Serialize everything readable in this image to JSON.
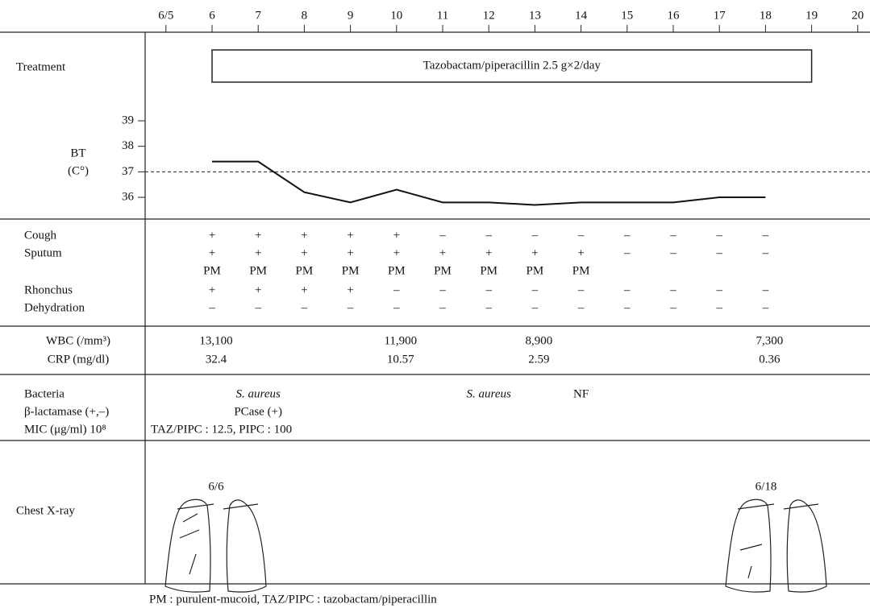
{
  "axis": {
    "days": [
      {
        "value": 5,
        "label": "6/5"
      },
      6,
      7,
      8,
      9,
      10,
      11,
      12,
      13,
      14,
      15,
      16,
      17,
      18,
      19,
      20
    ]
  },
  "treatment": {
    "label": "Treatment",
    "text": "Tazobactam/piperacillin  2.5 g×2/day",
    "start": 6,
    "end": 19
  },
  "bt": {
    "label": "BT",
    "unit": "(C°)",
    "yticks": [
      36,
      37,
      38,
      39
    ],
    "reference": 37,
    "days": [
      6,
      7,
      8,
      9,
      10,
      11,
      12,
      13,
      14,
      15,
      16,
      17,
      18
    ],
    "values": [
      37.4,
      37.4,
      36.2,
      35.8,
      36.3,
      35.8,
      35.8,
      35.7,
      35.8,
      35.8,
      35.8,
      36.0,
      36.0
    ]
  },
  "findings": {
    "days": [
      6,
      7,
      8,
      9,
      10,
      11,
      12,
      13,
      14,
      15,
      16,
      17,
      18
    ],
    "rows": [
      {
        "label": "Cough",
        "values": [
          "+",
          "+",
          "+",
          "+",
          "+",
          "–",
          "–",
          "–",
          "–",
          "–",
          "–",
          "–",
          "–"
        ]
      },
      {
        "label": "Sputum",
        "values": [
          "+",
          "+",
          "+",
          "+",
          "+",
          "+",
          "+",
          "+",
          "+",
          "–",
          "–",
          "–",
          "–"
        ],
        "grade": [
          "PM",
          "PM",
          "PM",
          "PM",
          "PM",
          "PM",
          "PM",
          "PM",
          "PM"
        ]
      },
      {
        "label": "Rhonchus",
        "values": [
          "+",
          "+",
          "+",
          "+",
          "–",
          "–",
          "–",
          "–",
          "–",
          "–",
          "–",
          "–",
          "–"
        ]
      },
      {
        "label": "Dehydration",
        "values": [
          "–",
          "–",
          "–",
          "–",
          "–",
          "–",
          "–",
          "–",
          "–",
          "–",
          "–",
          "–",
          "–"
        ]
      }
    ]
  },
  "labs": {
    "labels": [
      "WBC (/mm³)",
      "CRP (mg/dl)"
    ],
    "columns": [
      {
        "day": 6,
        "wbc": "13,100",
        "crp": "32.4"
      },
      {
        "day": 10,
        "wbc": "11,900",
        "crp": "10.57"
      },
      {
        "day": 13,
        "wbc": "8,900",
        "crp": "2.59"
      },
      {
        "day": 18,
        "wbc": "7,300",
        "crp": "0.36"
      }
    ]
  },
  "bacteria": {
    "labels": [
      "Bacteria",
      "β-lactamase (+,–)",
      "MIC (μg/ml) 10⁸"
    ],
    "entries": [
      {
        "day": 7,
        "text": "S. aureus"
      },
      {
        "day": 12,
        "text": "S. aureus"
      },
      {
        "day": 14,
        "text": "NF"
      }
    ],
    "beta": {
      "day": 7,
      "text": "PCase (+)"
    },
    "mic": "TAZ/PIPC : 12.5, PIPC : 100"
  },
  "xray": {
    "label": "Chest X-ray",
    "images": [
      "6/6",
      "6/18"
    ]
  },
  "footnote": "PM : purulent-mucoid,   TAZ/PIPC : tazobactam/piperacillin"
}
